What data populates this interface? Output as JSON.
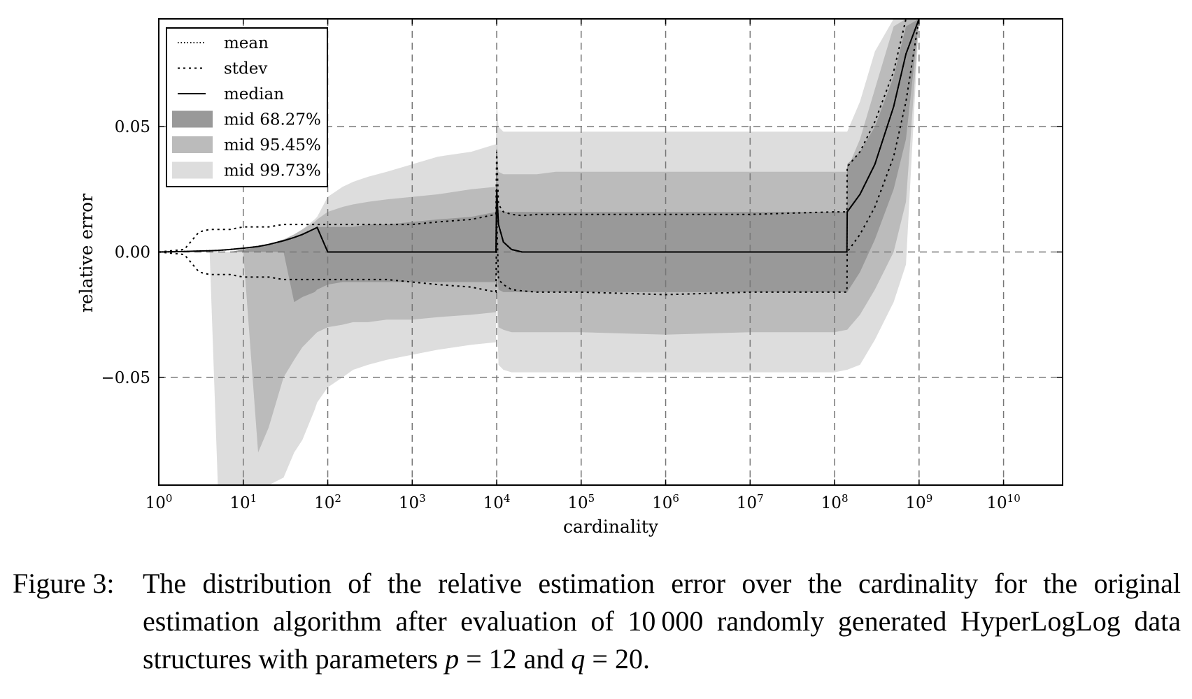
{
  "chart_data": {
    "type": "area",
    "xlabel": "cardinality",
    "ylabel": "relative error",
    "xscale": "log",
    "xlim": [
      1,
      50000000000
    ],
    "ylim": [
      -0.093,
      0.093
    ],
    "grid": true,
    "legend_position": "top-left",
    "xticks": [
      {
        "value": 1,
        "label": "10",
        "exp": "0"
      },
      {
        "value": 10,
        "label": "10",
        "exp": "1"
      },
      {
        "value": 100,
        "label": "10",
        "exp": "2"
      },
      {
        "value": 1000,
        "label": "10",
        "exp": "3"
      },
      {
        "value": 10000,
        "label": "10",
        "exp": "4"
      },
      {
        "value": 100000,
        "label": "10",
        "exp": "5"
      },
      {
        "value": 1000000,
        "label": "10",
        "exp": "6"
      },
      {
        "value": 10000000,
        "label": "10",
        "exp": "7"
      },
      {
        "value": 100000000,
        "label": "10",
        "exp": "8"
      },
      {
        "value": 1000000000,
        "label": "10",
        "exp": "9"
      },
      {
        "value": 10000000000,
        "label": "10",
        "exp": "10"
      }
    ],
    "yticks": [
      {
        "value": 0.05,
        "label": "0.05"
      },
      {
        "value": 0.0,
        "label": "0.00"
      },
      {
        "value": -0.05,
        "label": "−0.05"
      }
    ],
    "legend": [
      {
        "label": "mean",
        "style": "dotted"
      },
      {
        "label": "stdev",
        "style": "dashed"
      },
      {
        "label": "median",
        "style": "solid"
      },
      {
        "label": "mid 68.27%",
        "style": "band",
        "color": "#999999"
      },
      {
        "label": "mid 95.45%",
        "style": "band",
        "color": "#bbbbbb"
      },
      {
        "label": "mid 99.73%",
        "style": "band",
        "color": "#dddddd"
      }
    ],
    "x": [
      1,
      2,
      3,
      4,
      5,
      7,
      10,
      15,
      20,
      30,
      40,
      50,
      70,
      75,
      100,
      150,
      200,
      300,
      500,
      1000,
      2000,
      5000,
      9800,
      10000,
      10500,
      12000,
      15000,
      20000,
      30000,
      50000,
      100000,
      1000000,
      10000000,
      100000000,
      140000000,
      141000000,
      200000000,
      300000000,
      500000000,
      700000000,
      1000000000,
      1500000000
    ],
    "series": [
      {
        "name": "mid 99.73%",
        "lower": [
          0,
          0,
          0,
          0,
          -0.093,
          -0.093,
          -0.093,
          -0.093,
          -0.093,
          -0.09,
          -0.08,
          -0.075,
          -0.063,
          -0.06,
          -0.054,
          -0.05,
          -0.047,
          -0.045,
          -0.043,
          -0.041,
          -0.039,
          -0.037,
          -0.036,
          -0.015,
          -0.045,
          -0.047,
          -0.048,
          -0.048,
          -0.048,
          -0.048,
          -0.048,
          -0.048,
          -0.048,
          -0.048,
          -0.047,
          -0.047,
          -0.045,
          -0.035,
          -0.02,
          -0.005,
          0.093,
          0.093
        ],
        "upper": [
          0,
          0,
          0,
          0,
          0,
          0,
          0.001,
          0.002,
          0.003,
          0.005,
          0.007,
          0.009,
          0.013,
          0.014,
          0.022,
          0.026,
          0.028,
          0.03,
          0.032,
          0.035,
          0.038,
          0.04,
          0.043,
          0.06,
          0.05,
          0.048,
          0.048,
          0.048,
          0.048,
          0.048,
          0.048,
          0.048,
          0.048,
          0.048,
          0.048,
          0.048,
          0.06,
          0.08,
          0.093,
          0.093,
          0.093,
          0.093
        ]
      },
      {
        "name": "mid 95.45%",
        "lower": [
          0,
          0,
          0,
          0,
          0,
          0,
          0,
          -0.08,
          -0.07,
          -0.05,
          -0.043,
          -0.038,
          -0.033,
          -0.032,
          -0.03,
          -0.029,
          -0.028,
          -0.028,
          -0.027,
          -0.027,
          -0.026,
          -0.025,
          -0.024,
          -0.01,
          -0.03,
          -0.031,
          -0.032,
          -0.032,
          -0.032,
          -0.032,
          -0.032,
          -0.033,
          -0.032,
          -0.032,
          -0.031,
          -0.031,
          -0.025,
          -0.015,
          0.0,
          0.02,
          0.093,
          0.093
        ],
        "upper": [
          0,
          0,
          0,
          0,
          0,
          0,
          0.001,
          0.002,
          0.003,
          0.005,
          0.007,
          0.009,
          0.012,
          0.013,
          0.016,
          0.018,
          0.019,
          0.02,
          0.021,
          0.022,
          0.023,
          0.025,
          0.026,
          0.045,
          0.032,
          0.031,
          0.031,
          0.031,
          0.031,
          0.032,
          0.032,
          0.032,
          0.032,
          0.032,
          0.032,
          0.033,
          0.045,
          0.065,
          0.09,
          0.093,
          0.093,
          0.093
        ]
      },
      {
        "name": "mid 68.27%",
        "lower": [
          0,
          0,
          0,
          0,
          0,
          0,
          0,
          0,
          0,
          0,
          -0.02,
          -0.018,
          -0.016,
          -0.015,
          -0.013,
          -0.012,
          -0.012,
          -0.012,
          -0.012,
          -0.012,
          -0.012,
          -0.012,
          -0.012,
          -0.002,
          -0.015,
          -0.016,
          -0.016,
          -0.016,
          -0.016,
          -0.016,
          -0.016,
          -0.016,
          -0.016,
          -0.016,
          -0.016,
          -0.016,
          -0.008,
          0.005,
          0.025,
          0.045,
          0.093,
          0.093
        ],
        "upper": [
          0,
          0,
          0,
          0,
          0,
          0,
          0.001,
          0.002,
          0.003,
          0.005,
          0.006,
          0.007,
          0.009,
          0.01,
          0.01,
          0.01,
          0.01,
          0.011,
          0.011,
          0.012,
          0.013,
          0.014,
          0.016,
          0.035,
          0.017,
          0.016,
          0.016,
          0.016,
          0.016,
          0.016,
          0.016,
          0.016,
          0.016,
          0.016,
          0.016,
          0.035,
          0.04,
          0.05,
          0.07,
          0.09,
          0.093,
          0.093
        ]
      },
      {
        "name": "stdev",
        "lower": [
          0,
          -0.001,
          -0.008,
          -0.009,
          -0.009,
          -0.009,
          -0.01,
          -0.01,
          -0.01,
          -0.011,
          -0.011,
          -0.011,
          -0.011,
          -0.011,
          -0.011,
          -0.011,
          -0.011,
          -0.011,
          -0.011,
          -0.012,
          -0.013,
          -0.014,
          -0.016,
          0.015,
          -0.011,
          -0.013,
          -0.015,
          -0.0155,
          -0.016,
          -0.016,
          -0.016,
          -0.017,
          -0.016,
          -0.016,
          -0.016,
          0.0,
          0.007,
          0.018,
          0.038,
          0.06,
          0.093,
          0.093
        ],
        "upper": [
          0,
          0.001,
          0.008,
          0.009,
          0.009,
          0.009,
          0.01,
          0.01,
          0.01,
          0.011,
          0.011,
          0.011,
          0.011,
          0.011,
          0.011,
          0.011,
          0.011,
          0.011,
          0.011,
          0.011,
          0.012,
          0.013,
          0.015,
          0.04,
          0.019,
          0.016,
          0.015,
          0.0145,
          0.015,
          0.015,
          0.015,
          0.015,
          0.015,
          0.016,
          0.016,
          0.034,
          0.04,
          0.052,
          0.072,
          0.093,
          0.093,
          0.093
        ]
      },
      {
        "name": "median",
        "values": [
          0,
          0.0002,
          0.0004,
          0.0005,
          0.0006,
          0.001,
          0.0015,
          0.0022,
          0.003,
          0.0045,
          0.0058,
          0.007,
          0.0093,
          0.0098,
          0.0,
          0.0,
          0.0,
          0.0,
          0.0,
          0.0,
          0.0,
          0.0,
          0.0,
          0.025,
          0.011,
          0.004,
          0.001,
          0.0,
          0.0,
          0.0,
          0.0,
          0.0,
          0.0,
          0.0,
          0.0,
          0.016,
          0.023,
          0.035,
          0.058,
          0.079,
          0.093,
          0.093
        ]
      },
      {
        "name": "mean",
        "values": [
          0,
          0.0002,
          0.0004,
          0.0005,
          0.0006,
          0.001,
          0.0015,
          0.0022,
          0.003,
          0.0045,
          0.0058,
          0.007,
          0.0093,
          0.0098,
          0.0,
          0.0,
          0.0,
          0.0,
          0.0,
          0.0,
          0.0,
          0.0,
          0.0,
          0.025,
          0.011,
          0.004,
          0.001,
          0.0,
          0.0,
          0.0,
          0.0,
          0.0,
          0.0,
          0.0,
          0.0,
          0.016,
          0.023,
          0.035,
          0.058,
          0.079,
          0.093,
          0.093
        ]
      }
    ]
  },
  "caption": {
    "label": "Figure 3:",
    "text": "The distribution of the relative estimation error over the cardinality for the original estimation algorithm after evaluation of 10 000 randomly generated HyperLogLog data structures with parameters",
    "p_var": "p",
    "p_rel": " = 12 and ",
    "q_var": "q",
    "q_rel": " = 20."
  }
}
